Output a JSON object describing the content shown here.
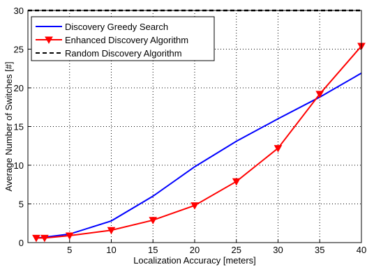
{
  "chart_data": {
    "type": "line",
    "title": "",
    "xlabel": "Localization Accuracy [meters]",
    "ylabel": "Average Number of Switches [#]",
    "xlim": [
      0,
      40
    ],
    "ylim": [
      0,
      30
    ],
    "xticks": [
      "5",
      "10",
      "15",
      "20",
      "25",
      "30",
      "35",
      "40"
    ],
    "yticks": [
      "0",
      "5",
      "10",
      "15",
      "20",
      "25",
      "30"
    ],
    "grid": true,
    "legend_position": "top-left",
    "series": [
      {
        "name": "Discovery Greedy Search",
        "color": "#0000ff",
        "style": "solid",
        "marker": "none",
        "x": [
          1,
          2,
          5,
          10,
          15,
          20,
          25,
          30,
          35,
          40
        ],
        "y": [
          0.6,
          0.7,
          1.1,
          2.8,
          6.0,
          9.8,
          13.1,
          16.0,
          18.8,
          21.9
        ]
      },
      {
        "name": "Enhanced Discovery Algorithm",
        "color": "#ff0000",
        "style": "solid",
        "marker": "triangle-down",
        "x": [
          1,
          2,
          5,
          10,
          15,
          20,
          25,
          30,
          35,
          40
        ],
        "y": [
          0.6,
          0.6,
          0.9,
          1.6,
          2.9,
          4.8,
          7.9,
          12.2,
          19.2,
          25.4
        ]
      },
      {
        "name": "Random Discovery Algorithm",
        "color": "#000000",
        "style": "dashed",
        "marker": "none",
        "x": [
          0,
          40
        ],
        "y": [
          30,
          30
        ]
      }
    ]
  }
}
